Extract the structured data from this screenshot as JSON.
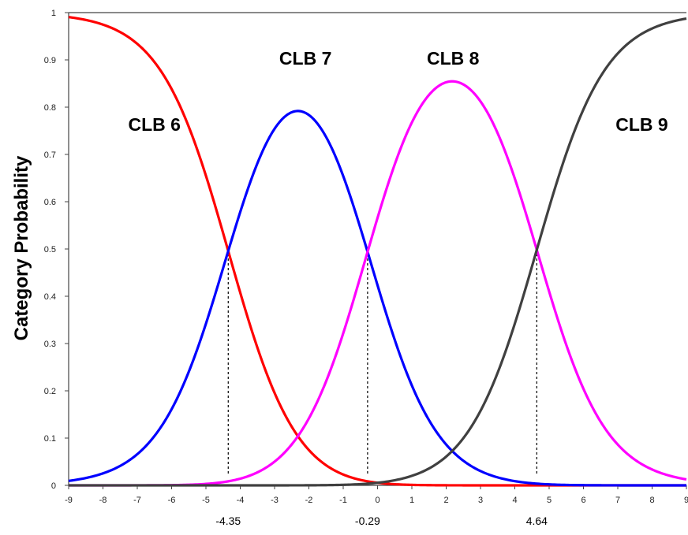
{
  "chart_data": {
    "type": "line",
    "ylabel": "Category  Probability",
    "xlim": [
      -9,
      9
    ],
    "ylim": [
      0,
      1
    ],
    "x_ticks": [
      -9,
      -8,
      -7,
      -6,
      -5,
      -4,
      -3,
      -2,
      -1,
      0,
      1,
      2,
      3,
      4,
      5,
      6,
      7,
      8,
      9
    ],
    "y_ticks": [
      0,
      0.1,
      0.2,
      0.3,
      0.4,
      0.5,
      0.6,
      0.7,
      0.8,
      0.9,
      1
    ],
    "y_tick_labels": [
      "0",
      "0.1",
      "0.2",
      "0.3",
      "0.4",
      "0.5",
      "0.6",
      "0.7",
      "0.8",
      "0.9",
      "1"
    ],
    "grid": false,
    "thresholds": [
      {
        "x": -4.35,
        "label": "-4.35"
      },
      {
        "x": -0.29,
        "label": "-0.29"
      },
      {
        "x": 4.64,
        "label": "4.64"
      }
    ],
    "series": [
      {
        "name": "CLB 6",
        "color": "#ff0000",
        "label_at": [
          -6.5,
          0.75
        ]
      },
      {
        "name": "CLB 7",
        "color": "#0000ff",
        "label_at": [
          -2.1,
          0.89
        ]
      },
      {
        "name": "CLB 8",
        "color": "#ff00ff",
        "label_at": [
          2.2,
          0.89
        ]
      },
      {
        "name": "CLB 9",
        "color": "#404040",
        "label_at": [
          7.7,
          0.75
        ]
      }
    ]
  }
}
